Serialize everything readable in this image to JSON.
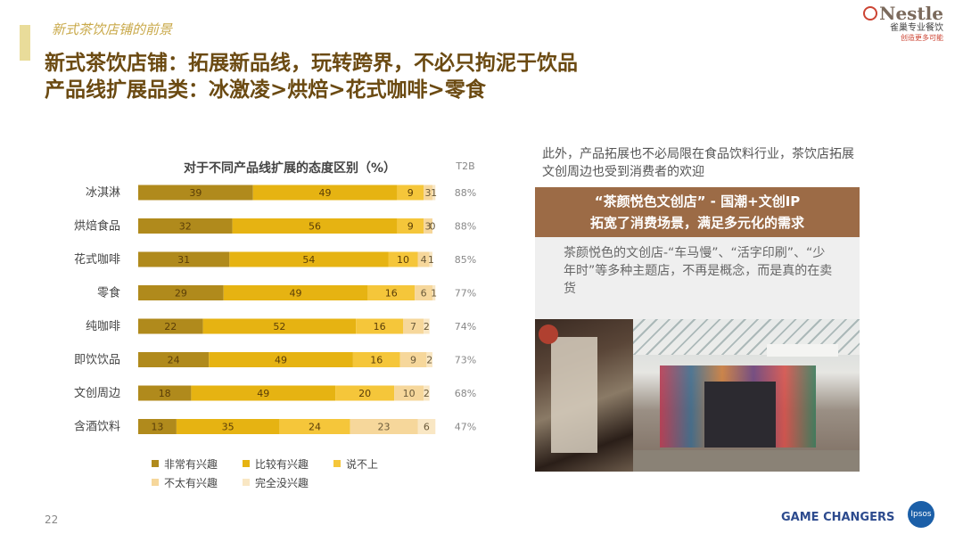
{
  "header": {
    "section_label": "新式茶饮店铺的前景",
    "title_line1": "新式茶饮店铺：拓展新品线，玩转跨界，不必只拘泥于饮品",
    "title_line2": "产品线扩展品类：冰激凌>烘焙>花式咖啡>零食"
  },
  "logo": {
    "word": "Nestle",
    "sub1": "雀巢专业餐饮",
    "sub2": "创造更多可能"
  },
  "chart_data": {
    "type": "bar",
    "orientation": "horizontal-stacked",
    "title": "对于不同产品线扩展的态度区别（%）",
    "t2b_header": "T2B",
    "categories": [
      "冰淇淋",
      "烘焙食品",
      "花式咖啡",
      "零食",
      "纯咖啡",
      "即饮饮品",
      "文创周边",
      "含酒饮料"
    ],
    "series": [
      {
        "name": "非常有兴趣",
        "color": "#b08a1c",
        "values": [
          39,
          32,
          31,
          29,
          22,
          24,
          18,
          13
        ]
      },
      {
        "name": "比较有兴趣",
        "color": "#e6b312",
        "values": [
          49,
          56,
          54,
          49,
          52,
          49,
          49,
          35
        ]
      },
      {
        "name": "说不上",
        "color": "#f5c63a",
        "values": [
          9,
          9,
          10,
          16,
          16,
          16,
          20,
          24
        ]
      },
      {
        "name": "不太有兴趣",
        "color": "#f6d79b",
        "values": [
          3,
          3,
          4,
          6,
          7,
          9,
          10,
          23
        ]
      },
      {
        "name": "完全没兴趣",
        "color": "#f9e7c4",
        "values": [
          1,
          0,
          1,
          1,
          2,
          2,
          2,
          6
        ]
      }
    ],
    "t2b": [
      "88%",
      "88%",
      "85%",
      "77%",
      "74%",
      "73%",
      "68%",
      "47%"
    ],
    "xlim": [
      0,
      100
    ],
    "legend_position": "bottom"
  },
  "right_panel": {
    "intro": "此外，产品拓展也不必局限在食品饮料行业，茶饮店拓展文创周边也受到消费者的欢迎",
    "box_title_line1": "“茶颜悦色文创店” - 国潮+文创IP",
    "box_title_line2": "拓宽了消费场景，满足多元化的需求",
    "box_body": "茶颜悦色的文创店-“车马慢”、“活字印刷”、“少年时”等多种主题店，不再是概念，而是真的在卖货"
  },
  "footer": {
    "page_number": "22",
    "brand": "GAME CHANGERS",
    "logo_text": "Ipsos"
  }
}
